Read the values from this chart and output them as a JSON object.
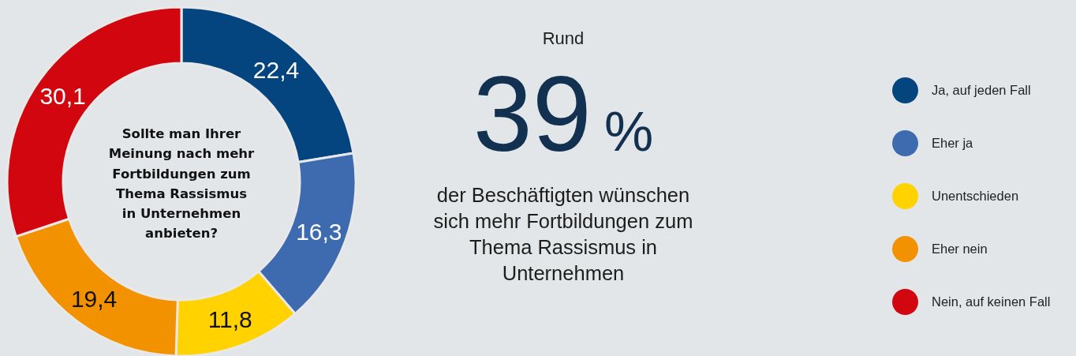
{
  "chart_data": [
    {
      "type": "donut",
      "title": "Sollte man Ihrer Meinung nach mehr Fortbildungen zum Thema Rassismus in Unternehmen anbieten?",
      "categories": [
        "Ja, auf jeden Fall",
        "Eher ja",
        "Unentschieden",
        "Eher nein",
        "Nein, auf keinen Fall"
      ],
      "values": [
        22.4,
        16.3,
        11.8,
        19.4,
        30.1
      ],
      "colors": [
        "#05457f",
        "#3e6bb0",
        "#ffd200",
        "#f39200",
        "#d2060f"
      ],
      "value_labels": [
        "22,4",
        "16,3",
        "11,8",
        "19,4",
        "30,1"
      ],
      "legend": "right"
    },
    {
      "type": "other",
      "annotations": [
        "Rund",
        "39%",
        "der Beschäftigten wünschen sich mehr Fortbildungen zum Thema Rassismus in Unternehmen"
      ]
    }
  ]
}
